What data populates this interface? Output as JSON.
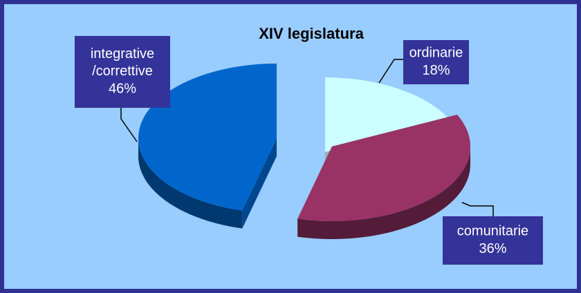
{
  "chart_data": {
    "type": "pie",
    "title": "XIV legislatura",
    "categories": [
      "ordinarie",
      "comunitarie",
      "integrative /correttive"
    ],
    "values": [
      18,
      36,
      46
    ],
    "value_labels": [
      "18%",
      "36%",
      "46%"
    ],
    "colors": [
      "#ccffff",
      "#993366",
      "#0066cc"
    ]
  }
}
